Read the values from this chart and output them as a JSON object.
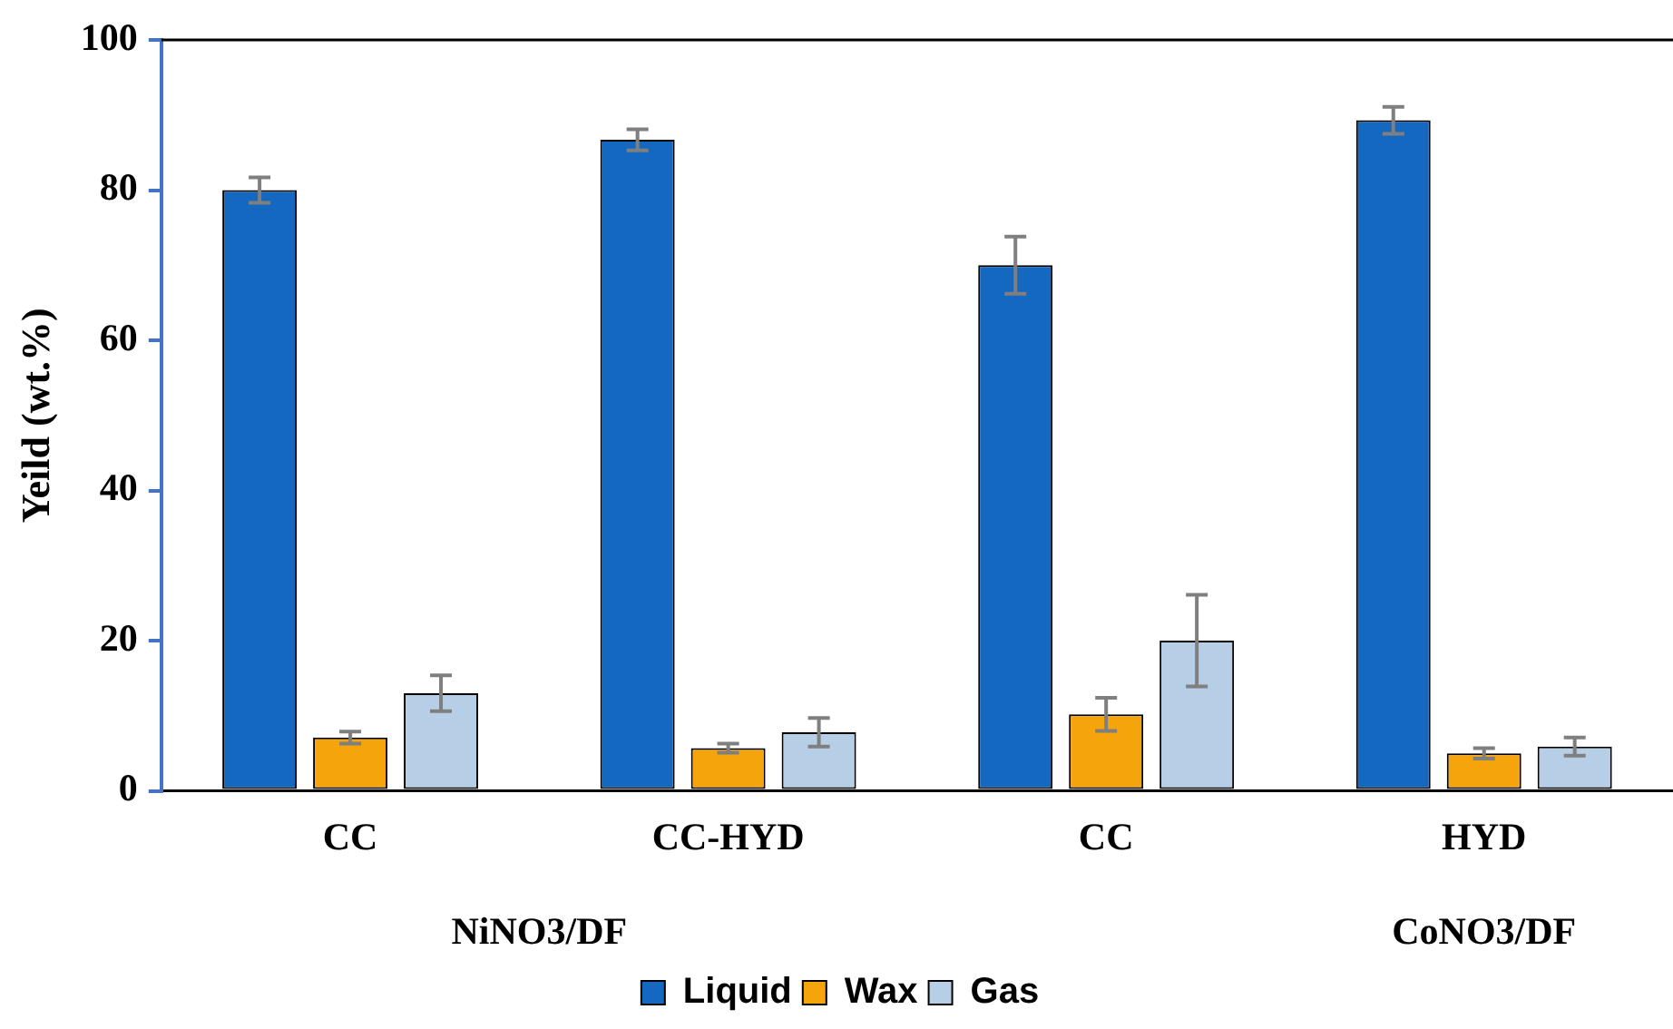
{
  "chart_data": {
    "type": "bar",
    "ylabel": "Yeild (wt.%)",
    "categories": [
      "CC",
      "CC-HYD",
      "CC",
      "HYD"
    ],
    "series": [
      {
        "name": "Liquid",
        "color": "#1568c0",
        "values": [
          80.0,
          86.7,
          70.0,
          89.3
        ],
        "errors": [
          1.7,
          1.4,
          3.8,
          1.8
        ]
      },
      {
        "name": "Wax",
        "color": "#f5a40c",
        "values": [
          7.1,
          5.7,
          10.2,
          5.0
        ],
        "errors": [
          0.8,
          0.6,
          2.2,
          0.7
        ]
      },
      {
        "name": "Gas",
        "color": "#b7cfe6",
        "values": [
          13.0,
          7.8,
          20.0,
          5.9
        ],
        "errors": [
          2.4,
          1.9,
          6.1,
          1.2
        ]
      }
    ],
    "ylim": [
      0,
      100
    ],
    "yticks": [
      0,
      20,
      40,
      60,
      80,
      100
    ],
    "annotations": [
      "NiNO3/DF",
      "CoNO3/DF"
    ],
    "grid": false,
    "legend": "bottom"
  }
}
